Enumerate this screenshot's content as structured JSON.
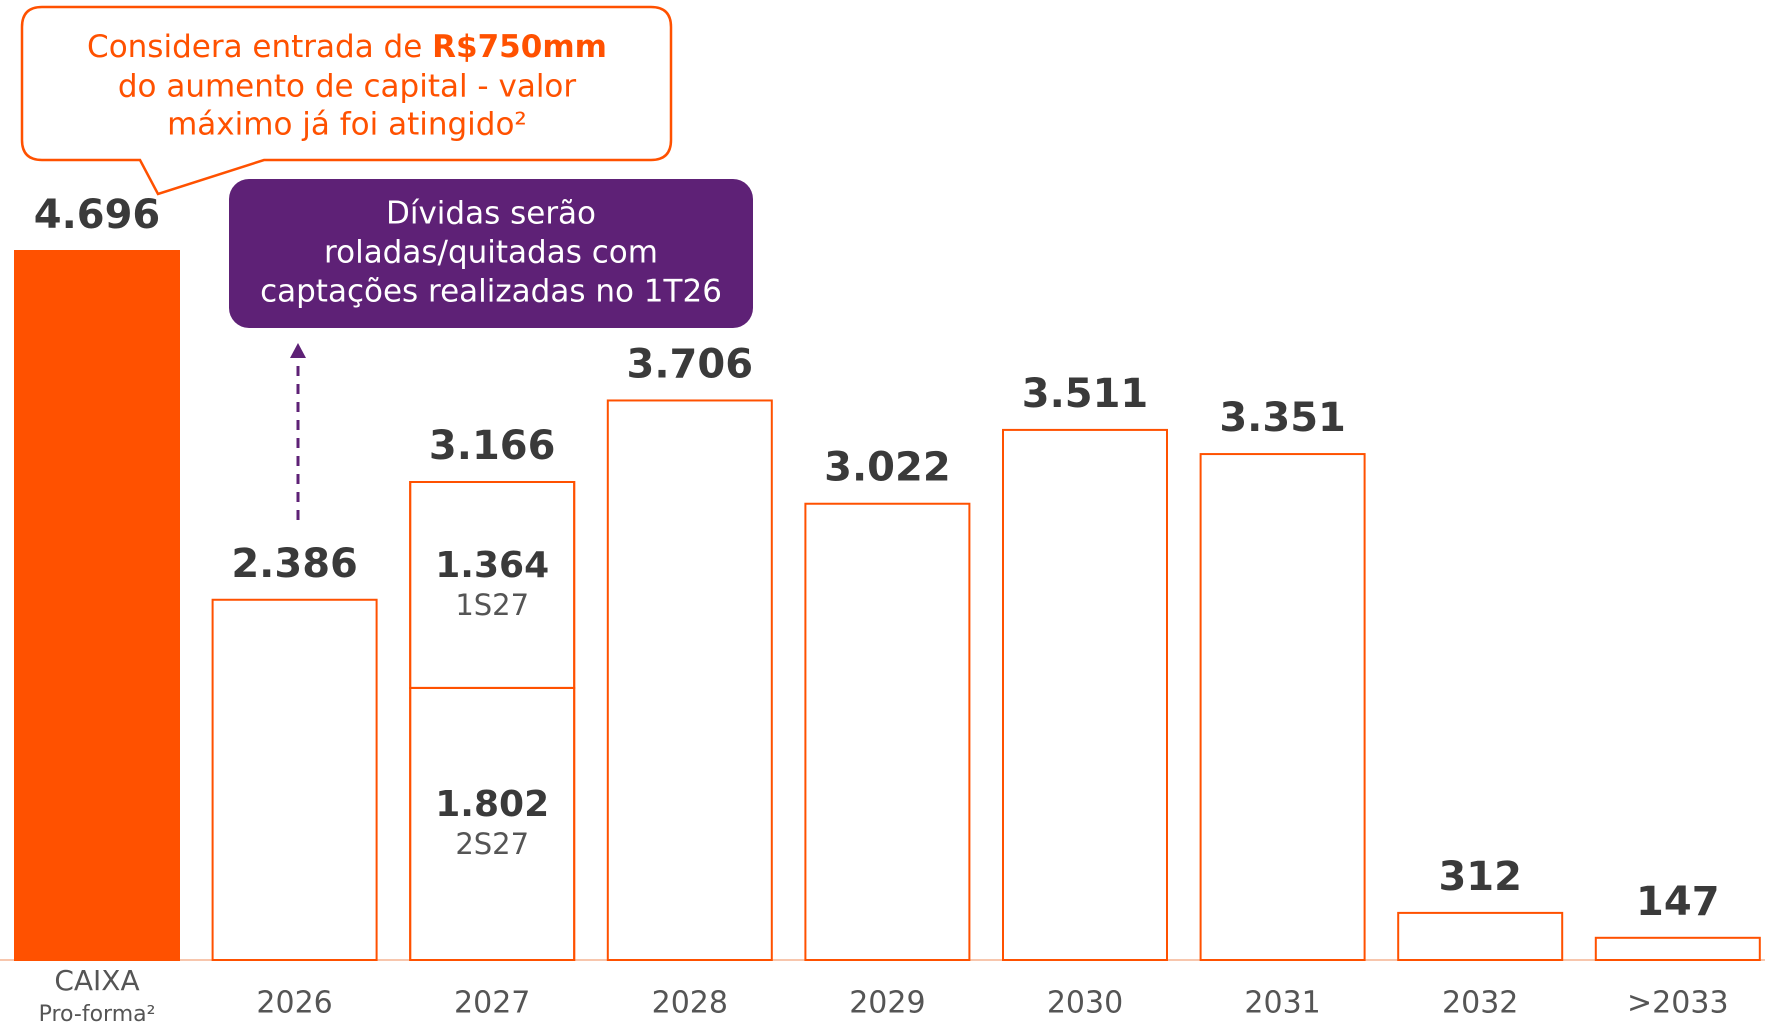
{
  "chart_data": {
    "type": "bar",
    "categories": [
      "CAIXA",
      "2026",
      "2027",
      "2028",
      "2029",
      "2030",
      "2031",
      "2032",
      ">2033"
    ],
    "category_note": "Pro-forma²",
    "values": [
      4696,
      2386,
      3166,
      3706,
      3022,
      3511,
      3351,
      312,
      147
    ],
    "value_labels": [
      "4.696",
      "2.386",
      "3.166",
      "3.706",
      "3.022",
      "3.511",
      "3.351",
      "312",
      "147"
    ],
    "color": "#ff5100",
    "filled_categories": [
      "CAIXA"
    ],
    "breakdown_category": "2027",
    "breakdown": [
      {
        "name": "1S27",
        "value": 1364,
        "value_label": "1.364"
      },
      {
        "name": "2S27",
        "value": 1802,
        "value_label": "1.802"
      }
    ],
    "callout": {
      "text": "Considera entrada de ",
      "bold": "R$750mm",
      "lines": [
        "do aumento de capital -  valor",
        "máximo já foi atingido²"
      ],
      "color": "#ff5100"
    },
    "note": {
      "lines": [
        "Dívidas serão",
        "roladas/quitadas com",
        "captações realizadas no 1T26"
      ],
      "color": "#5e2176"
    }
  }
}
